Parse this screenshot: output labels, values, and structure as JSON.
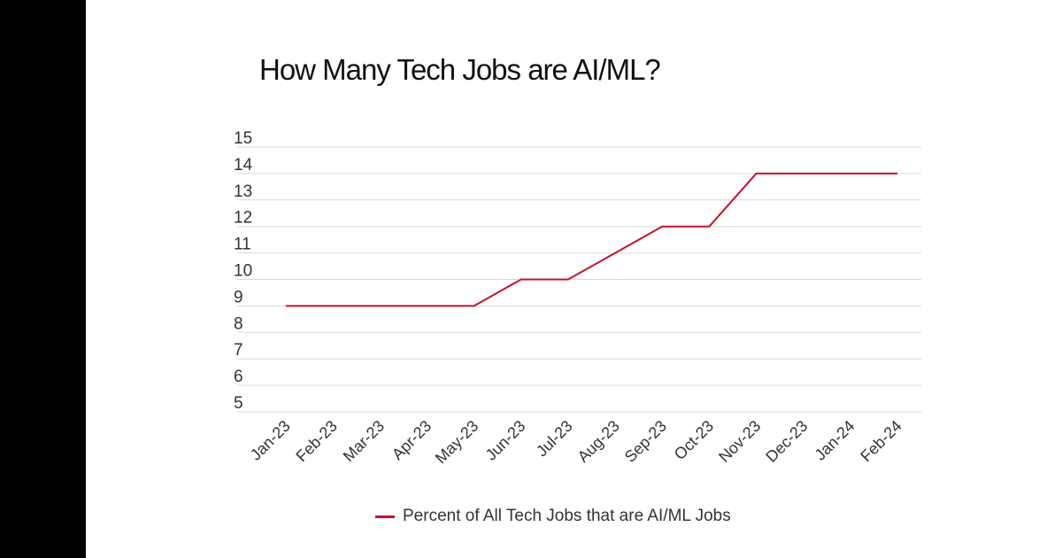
{
  "chart_data": {
    "type": "line",
    "title": "How Many Tech Jobs are AI/ML?",
    "xlabel": "",
    "ylabel": "",
    "categories": [
      "Jan-23",
      "Feb-23",
      "Mar-23",
      "Apr-23",
      "May-23",
      "Jun-23",
      "Jul-23",
      "Aug-23",
      "Sep-23",
      "Oct-23",
      "Nov-23",
      "Dec-23",
      "Jan-24",
      "Feb-24"
    ],
    "series": [
      {
        "name": "Percent of All Tech Jobs that are AI/ML Jobs",
        "color": "#c8102e",
        "values": [
          9,
          9,
          9,
          9,
          9,
          10,
          10,
          11,
          12,
          12,
          14,
          14,
          14,
          14
        ]
      }
    ],
    "ylim": [
      5,
      15
    ],
    "yticks": [
      "5",
      "6",
      "7",
      "8",
      "9",
      "10",
      "11",
      "12",
      "13",
      "14",
      "15"
    ],
    "grid": true,
    "legend_position": "bottom"
  },
  "colors": {
    "side_bar": "#000000",
    "gridline": "#d9d9d9",
    "text": "#333333"
  }
}
